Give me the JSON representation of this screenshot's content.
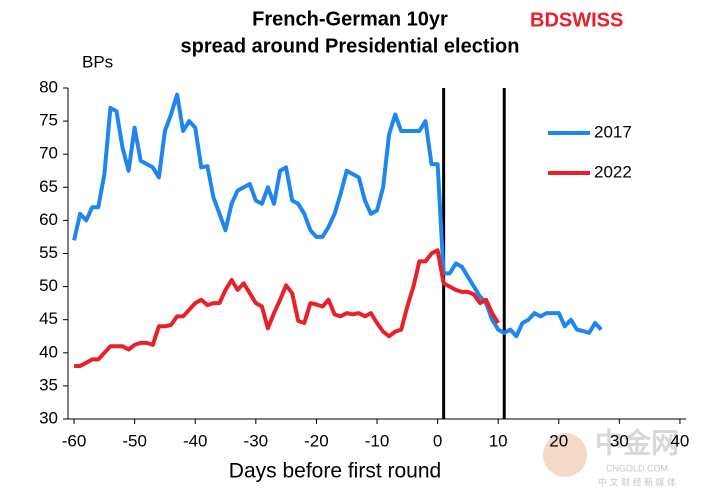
{
  "chart_data": {
    "type": "line",
    "title": "French-German  10yr",
    "subtitle": "spread around Presidential election",
    "ylabel": "BPs",
    "xlabel": "Days before first round",
    "logo": "BDSWISS",
    "watermark": [
      "中金网",
      "CNGOLD.COM",
      "中 文 财 经 新 媒 体"
    ],
    "x": [
      -60,
      -59,
      -58,
      -57,
      -56,
      -55,
      -54,
      -53,
      -52,
      -51,
      -50,
      -49,
      -48,
      -47,
      -46,
      -45,
      -44,
      -43,
      -42,
      -41,
      -40,
      -39,
      -38,
      -37,
      -36,
      -35,
      -34,
      -33,
      -32,
      -31,
      -30,
      -29,
      -28,
      -27,
      -26,
      -25,
      -24,
      -23,
      -22,
      -21,
      -20,
      -19,
      -18,
      -17,
      -16,
      -15,
      -14,
      -13,
      -12,
      -11,
      -10,
      -9,
      -8,
      -7,
      -6,
      -5,
      -4,
      -3,
      -2,
      -1,
      0,
      1,
      2,
      3,
      4,
      5,
      6,
      7,
      8,
      9,
      10,
      11,
      12,
      13,
      14,
      15,
      16,
      17,
      18,
      19,
      20,
      21,
      22,
      23,
      24,
      25,
      26,
      27
    ],
    "series": [
      {
        "name": "2017",
        "color": "#1f86f0",
        "values": [
          57,
          61,
          60,
          62,
          62,
          67,
          77,
          76.5,
          71,
          67.5,
          74,
          69,
          68.5,
          68,
          66.5,
          73.5,
          76,
          79,
          73.5,
          75,
          74,
          68,
          68.2,
          63.5,
          61,
          58.5,
          62.5,
          64.5,
          65,
          65.5,
          63,
          62.5,
          65,
          62.5,
          67.5,
          68,
          63,
          62.5,
          61,
          58.5,
          57.5,
          57.5,
          59,
          61,
          64,
          67.5,
          67,
          66.5,
          63,
          61,
          61.5,
          65,
          73,
          76,
          73.5,
          73.5,
          73.5,
          73.5,
          75,
          68.5,
          68.5,
          52,
          52,
          53.5,
          53,
          51.5,
          50,
          48.5,
          47.5,
          45,
          43.5,
          43,
          43.5,
          42.5,
          44.5,
          45,
          46,
          45.5,
          46,
          46,
          46,
          44,
          45,
          43.5,
          43.3,
          43,
          44.5,
          43.5
        ]
      },
      {
        "name": "2022",
        "color": "#e8202a",
        "values": [
          38,
          38,
          38.5,
          39,
          39,
          40,
          41,
          41,
          41,
          40.5,
          41.2,
          41.5,
          41.5,
          41.2,
          44,
          44,
          44.2,
          45.5,
          45.5,
          46.5,
          47.5,
          48,
          47.2,
          47.5,
          47.5,
          49.5,
          51,
          49.5,
          50.5,
          49,
          47.5,
          47,
          43.7,
          46,
          48,
          50.2,
          49,
          44.8,
          44.5,
          47.5,
          47.3,
          47,
          48,
          45.8,
          45.5,
          46,
          45.8,
          46,
          45.5,
          46,
          44.5,
          43.2,
          42.5,
          43.2,
          43.5,
          47,
          50,
          53.8,
          53.8,
          55,
          55.5,
          50.5,
          50,
          49.5,
          49.2,
          49.2,
          48.8,
          47.5,
          48,
          46,
          44.5,
          null,
          null,
          null,
          null,
          null,
          null,
          null,
          null,
          null,
          null,
          null,
          null,
          null,
          null,
          null,
          null,
          null
        ]
      }
    ],
    "vlines": [
      1,
      11
    ],
    "xlim": [
      -61,
      41
    ],
    "xticks": [
      -60,
      -50,
      -40,
      -30,
      -20,
      -10,
      0,
      10,
      20,
      30,
      40
    ],
    "ylim": [
      30,
      80
    ],
    "yticks": [
      30,
      35,
      40,
      45,
      50,
      55,
      60,
      65,
      70,
      75,
      80
    ],
    "grid": false,
    "legend": "right"
  }
}
